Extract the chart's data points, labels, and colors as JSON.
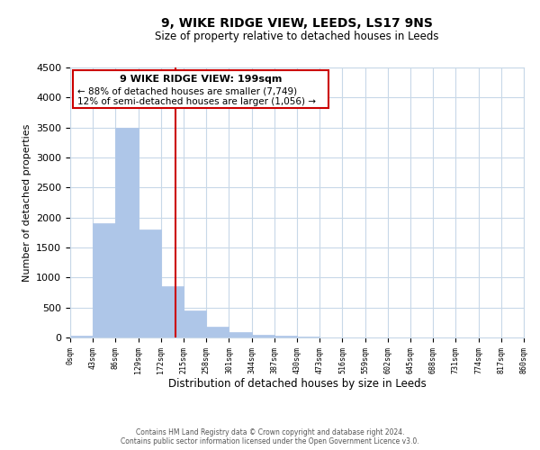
{
  "title": "9, WIKE RIDGE VIEW, LEEDS, LS17 9NS",
  "subtitle": "Size of property relative to detached houses in Leeds",
  "xlabel": "Distribution of detached houses by size in Leeds",
  "ylabel": "Number of detached properties",
  "bar_edges": [
    0,
    43,
    86,
    129,
    172,
    215,
    258,
    301,
    344,
    387,
    430,
    473,
    516,
    559,
    602,
    645,
    688,
    731,
    774,
    817,
    860
  ],
  "bar_heights": [
    30,
    1900,
    3500,
    1800,
    850,
    450,
    175,
    85,
    50,
    30,
    15,
    5,
    0,
    0,
    0,
    0,
    0,
    0,
    0,
    0
  ],
  "bar_color": "#aec6e8",
  "bar_edgecolor": "#aec6e8",
  "vline_x": 199,
  "vline_color": "#cc0000",
  "ylim": [
    0,
    4500
  ],
  "yticks": [
    0,
    500,
    1000,
    1500,
    2000,
    2500,
    3000,
    3500,
    4000,
    4500
  ],
  "xtick_labels": [
    "0sqm",
    "43sqm",
    "86sqm",
    "129sqm",
    "172sqm",
    "215sqm",
    "258sqm",
    "301sqm",
    "344sqm",
    "387sqm",
    "430sqm",
    "473sqm",
    "516sqm",
    "559sqm",
    "602sqm",
    "645sqm",
    "688sqm",
    "731sqm",
    "774sqm",
    "817sqm",
    "860sqm"
  ],
  "annotation_title": "9 WIKE RIDGE VIEW: 199sqm",
  "annotation_line1": "← 88% of detached houses are smaller (7,749)",
  "annotation_line2": "12% of semi-detached houses are larger (1,056) →",
  "footer_line1": "Contains HM Land Registry data © Crown copyright and database right 2024.",
  "footer_line2": "Contains public sector information licensed under the Open Government Licence v3.0.",
  "background_color": "#ffffff",
  "grid_color": "#c8d8e8"
}
